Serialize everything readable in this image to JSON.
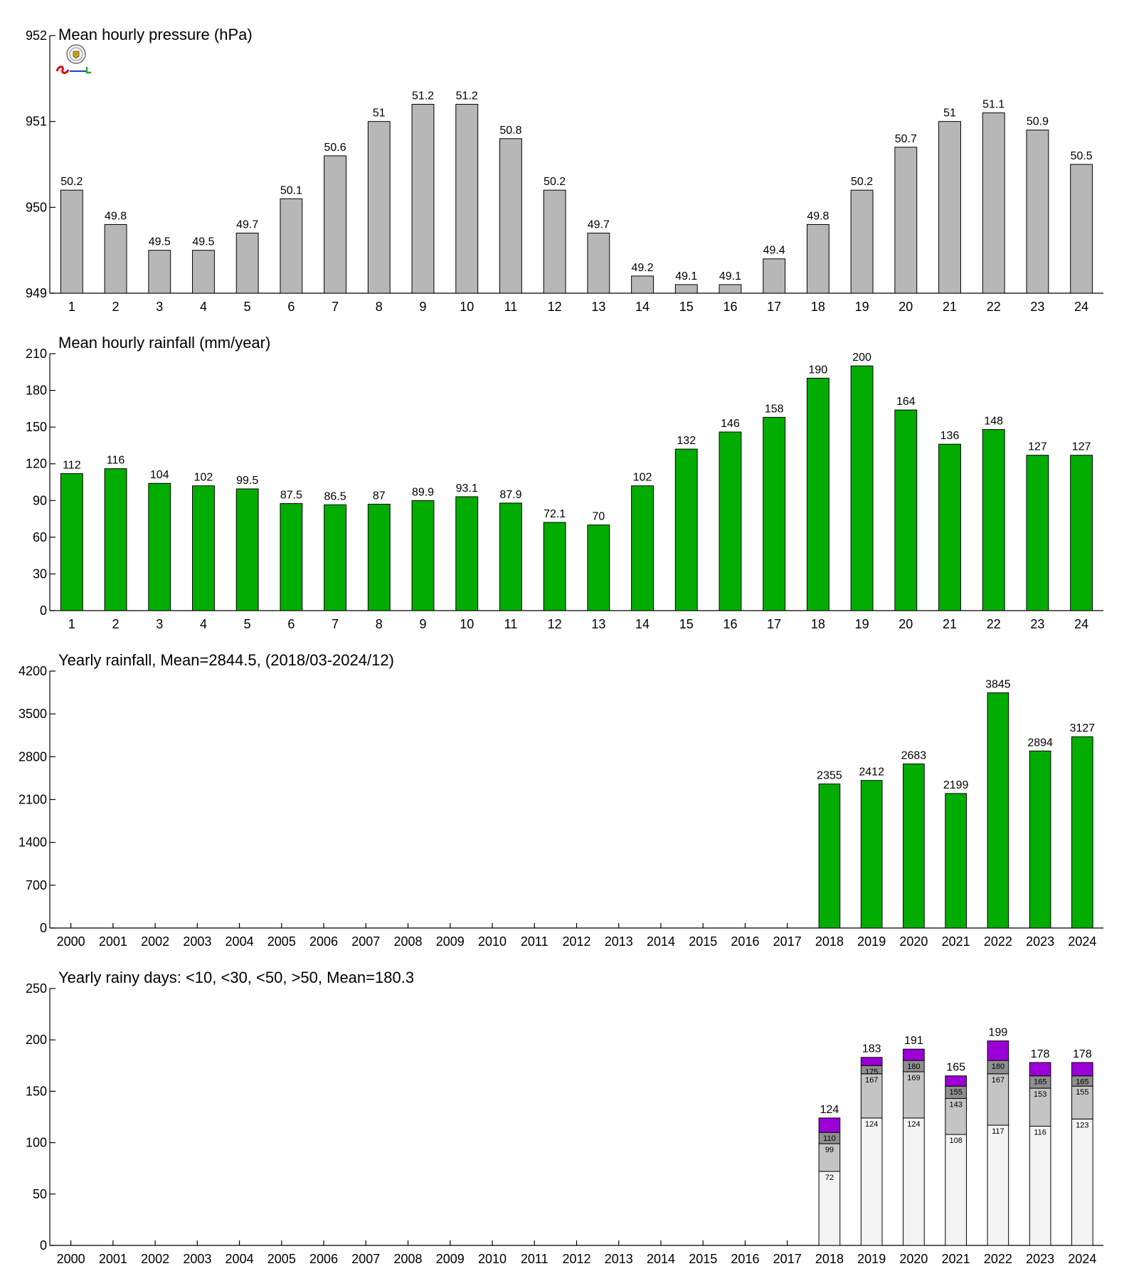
{
  "colors": {
    "pressure": "#b7b7b7",
    "rain": "#00ad00",
    "stack": [
      "#f3f3f3",
      "#c4c4c4",
      "#8f8f8f",
      "#9b00d6"
    ]
  },
  "chart_data": [
    {
      "type": "bar",
      "title": "Mean hourly pressure (hPa)",
      "categories": [
        "1",
        "2",
        "3",
        "4",
        "5",
        "6",
        "7",
        "8",
        "9",
        "10",
        "11",
        "12",
        "13",
        "14",
        "15",
        "16",
        "17",
        "18",
        "19",
        "20",
        "21",
        "22",
        "23",
        "24"
      ],
      "values": [
        950.2,
        949.8,
        949.5,
        949.5,
        949.7,
        950.1,
        950.6,
        951.0,
        951.2,
        951.2,
        950.8,
        950.2,
        949.7,
        949.2,
        949.1,
        949.1,
        949.4,
        949.8,
        950.2,
        950.7,
        951.0,
        951.1,
        950.9,
        950.5
      ],
      "value_labels": [
        "50.2",
        "49.8",
        "49.5",
        "49.5",
        "49.7",
        "50.1",
        "50.6",
        "51",
        "51.2",
        "51.2",
        "50.8",
        "50.2",
        "49.7",
        "49.2",
        "49.1",
        "49.1",
        "49.4",
        "49.8",
        "50.2",
        "50.7",
        "51",
        "51.1",
        "50.9",
        "50.5"
      ],
      "ylim": [
        949,
        952
      ],
      "yticks": [
        "949",
        "950",
        "951",
        "952"
      ],
      "xlabel": "",
      "ylabel": ""
    },
    {
      "type": "bar",
      "title": "Mean hourly rainfall (mm/year)",
      "categories": [
        "1",
        "2",
        "3",
        "4",
        "5",
        "6",
        "7",
        "8",
        "9",
        "10",
        "11",
        "12",
        "13",
        "14",
        "15",
        "16",
        "17",
        "18",
        "19",
        "20",
        "21",
        "22",
        "23",
        "24"
      ],
      "values": [
        112,
        116,
        104,
        102,
        99.5,
        87.5,
        86.5,
        87,
        89.9,
        93.1,
        87.9,
        72.1,
        70,
        102,
        132,
        146,
        158,
        190,
        200,
        164,
        136,
        148,
        127,
        127
      ],
      "value_labels": [
        "112",
        "116",
        "104",
        "102",
        "99.5",
        "87.5",
        "86.5",
        "87",
        "89.9",
        "93.1",
        "87.9",
        "72.1",
        "70",
        "102",
        "132",
        "146",
        "158",
        "190",
        "200",
        "164",
        "136",
        "148",
        "127",
        "127"
      ],
      "ylim": [
        0,
        210
      ],
      "yticks": [
        "0",
        "30",
        "60",
        "90",
        "120",
        "150",
        "180",
        "210"
      ],
      "xlabel": "",
      "ylabel": ""
    },
    {
      "type": "bar",
      "title": "Yearly rainfall, Mean=2844.5, (2018/03-2024/12)",
      "categories": [
        "2000",
        "2001",
        "2002",
        "2003",
        "2004",
        "2005",
        "2006",
        "2007",
        "2008",
        "2009",
        "2010",
        "2011",
        "2012",
        "2013",
        "2014",
        "2015",
        "2016",
        "2017",
        "2018",
        "2019",
        "2020",
        "2021",
        "2022",
        "2023",
        "2024"
      ],
      "values": [
        null,
        null,
        null,
        null,
        null,
        null,
        null,
        null,
        null,
        null,
        null,
        null,
        null,
        null,
        null,
        null,
        null,
        null,
        2355,
        2412,
        2683,
        2199,
        3845,
        2894,
        3127
      ],
      "value_labels": [
        "",
        "",
        "",
        "",
        "",
        "",
        "",
        "",
        "",
        "",
        "",
        "",
        "",
        "",
        "",
        "",
        "",
        "",
        "2355",
        "2412",
        "2683",
        "2199",
        "3845",
        "2894",
        "3127"
      ],
      "ylim": [
        0,
        4200
      ],
      "yticks": [
        "0",
        "700",
        "1400",
        "2100",
        "2800",
        "3500",
        "4200"
      ],
      "xlabel": "",
      "ylabel": ""
    },
    {
      "type": "bar",
      "stacked": true,
      "title": "Yearly rainy days: <10, <30, <50, >50, Mean=180.3",
      "categories": [
        "2000",
        "2001",
        "2002",
        "2003",
        "2004",
        "2005",
        "2006",
        "2007",
        "2008",
        "2009",
        "2010",
        "2011",
        "2012",
        "2013",
        "2014",
        "2015",
        "2016",
        "2017",
        "2018",
        "2019",
        "2020",
        "2021",
        "2022",
        "2023",
        "2024"
      ],
      "cumulative_series": [
        {
          "name": "<10",
          "values": [
            null,
            null,
            null,
            null,
            null,
            null,
            null,
            null,
            null,
            null,
            null,
            null,
            null,
            null,
            null,
            null,
            null,
            null,
            72,
            124,
            124,
            108,
            117,
            116,
            123
          ]
        },
        {
          "name": "<30",
          "values": [
            null,
            null,
            null,
            null,
            null,
            null,
            null,
            null,
            null,
            null,
            null,
            null,
            null,
            null,
            null,
            null,
            null,
            null,
            99,
            167,
            169,
            143,
            167,
            153,
            155
          ]
        },
        {
          "name": "<50",
          "values": [
            null,
            null,
            null,
            null,
            null,
            null,
            null,
            null,
            null,
            null,
            null,
            null,
            null,
            null,
            null,
            null,
            null,
            null,
            110,
            175,
            180,
            155,
            180,
            165,
            165
          ]
        },
        {
          "name": ">50",
          "values": [
            null,
            null,
            null,
            null,
            null,
            null,
            null,
            null,
            null,
            null,
            null,
            null,
            null,
            null,
            null,
            null,
            null,
            null,
            124,
            183,
            191,
            165,
            199,
            178,
            178
          ]
        }
      ],
      "ylim": [
        0,
        250
      ],
      "yticks": [
        "0",
        "50",
        "100",
        "150",
        "200",
        "250"
      ],
      "xlabel": "",
      "ylabel": ""
    }
  ]
}
